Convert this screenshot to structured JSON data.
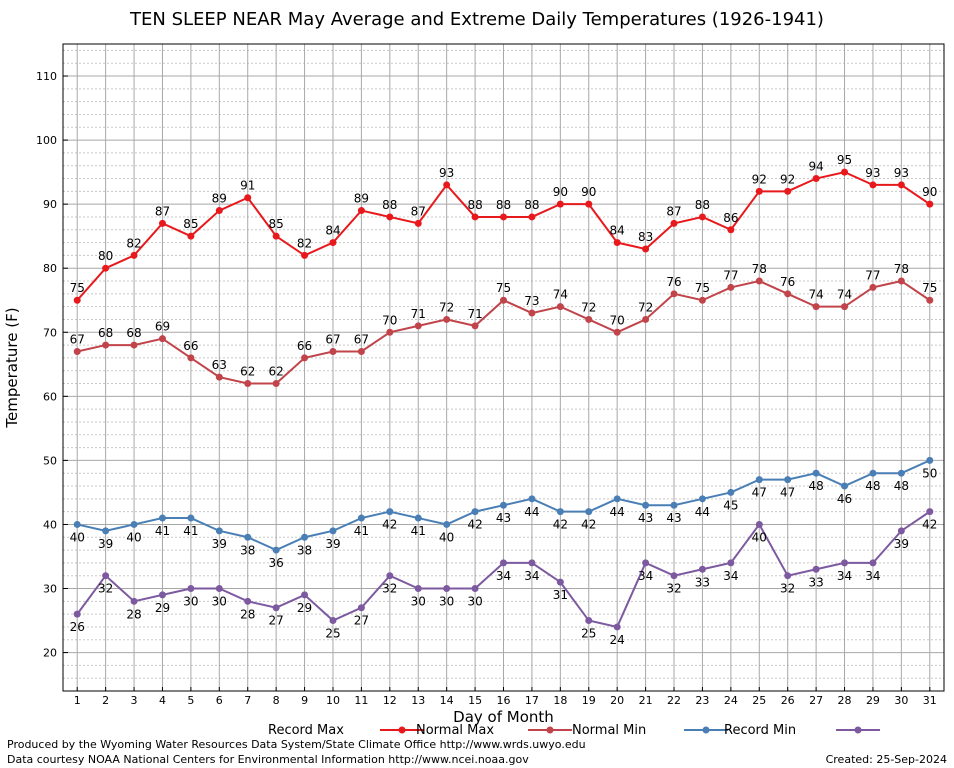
{
  "chart_data": {
    "type": "line",
    "title": "TEN SLEEP NEAR May Average and Extreme Daily Temperatures (1926-1941)",
    "xlabel": "Day of Month",
    "ylabel": "Temperature (F)",
    "xlim": [
      0.5,
      31.5
    ],
    "ylim": [
      14,
      115
    ],
    "yticks": [
      20,
      30,
      40,
      50,
      60,
      70,
      80,
      90,
      100,
      110
    ],
    "x": [
      1,
      2,
      3,
      4,
      5,
      6,
      7,
      8,
      9,
      10,
      11,
      12,
      13,
      14,
      15,
      16,
      17,
      18,
      19,
      20,
      21,
      22,
      23,
      24,
      25,
      26,
      27,
      28,
      29,
      30,
      31
    ],
    "grid": true,
    "legend_position": "bottom",
    "series": [
      {
        "name": "Record Max",
        "color": "#e8191c",
        "label_position": "above",
        "values": [
          75,
          80,
          82,
          87,
          85,
          89,
          91,
          85,
          82,
          84,
          89,
          88,
          87,
          93,
          88,
          88,
          88,
          90,
          90,
          84,
          83,
          87,
          88,
          86,
          92,
          92,
          94,
          95,
          93,
          93,
          90
        ]
      },
      {
        "name": "Normal Max",
        "color": "#c0444a",
        "label_position": "above",
        "values": [
          67,
          68,
          68,
          69,
          66,
          63,
          62,
          62,
          66,
          67,
          67,
          70,
          71,
          72,
          71,
          75,
          73,
          74,
          72,
          70,
          72,
          76,
          75,
          77,
          78,
          76,
          74,
          74,
          77,
          78,
          75
        ]
      },
      {
        "name": "Normal Min",
        "color": "#4a7fb5",
        "label_position": "below",
        "values": [
          40,
          39,
          40,
          41,
          41,
          39,
          38,
          36,
          38,
          39,
          41,
          42,
          41,
          40,
          42,
          43,
          44,
          42,
          42,
          44,
          43,
          43,
          44,
          45,
          47,
          47,
          48,
          46,
          48,
          48,
          50
        ]
      },
      {
        "name": "Record Min",
        "color": "#7d5aa0",
        "label_position": "below",
        "values": [
          26,
          32,
          28,
          29,
          30,
          30,
          28,
          27,
          29,
          25,
          27,
          32,
          30,
          30,
          30,
          34,
          34,
          31,
          25,
          24,
          34,
          32,
          33,
          34,
          40,
          32,
          33,
          34,
          34,
          39,
          42
        ]
      }
    ]
  },
  "footer": {
    "produced_by": "Produced by the Wyoming Water Resources Data System/State Climate Office http://www.wrds.uwyo.edu",
    "courtesy": "Data courtesy NOAA National Centers for Environmental Information http://www.ncei.noaa.gov",
    "created": "Created:  25-Sep-2024"
  }
}
